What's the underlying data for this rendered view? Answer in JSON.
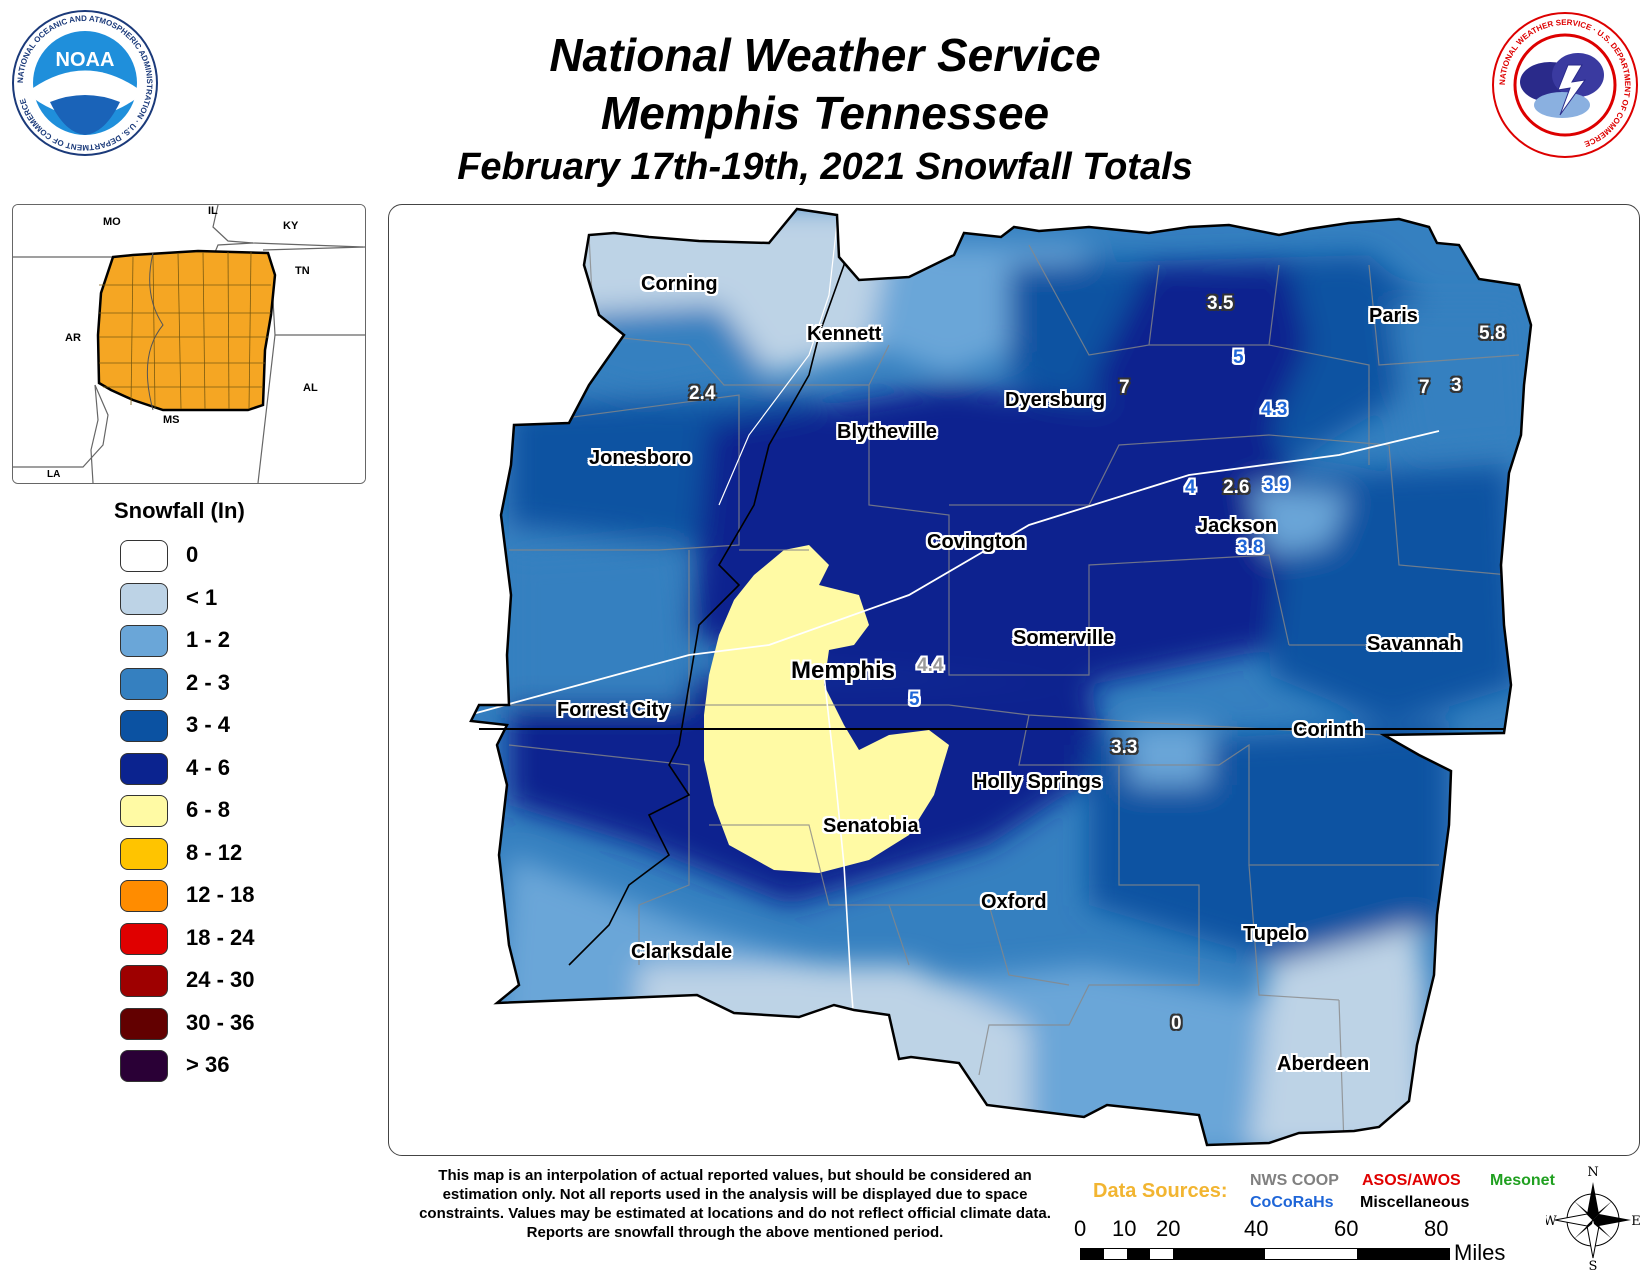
{
  "title": {
    "line1": "National Weather Service",
    "line2": "Memphis Tennessee",
    "line3": "February 17th-19th, 2021 Snowfall Totals"
  },
  "logos": {
    "noaa": {
      "text": "NOAA",
      "ring": "NATIONAL OCEANIC AND ATMOSPHERIC ADMINISTRATION · U.S. DEPARTMENT OF COMMERCE"
    },
    "nws": {
      "ring": "NATIONAL WEATHER SERVICE · U.S. DEPARTMENT OF COMMERCE"
    }
  },
  "inset": {
    "states": [
      "MO",
      "IL",
      "KY",
      "TN",
      "AR",
      "AL",
      "MS",
      "LA"
    ],
    "highlight_color": "#f5a623"
  },
  "legend": {
    "title": "Snowfall (In)",
    "items": [
      {
        "label": "0",
        "color": "#ffffff"
      },
      {
        "label": "< 1",
        "color": "#bdd3e6"
      },
      {
        "label": "1 - 2",
        "color": "#6aa6d8"
      },
      {
        "label": "2 - 3",
        "color": "#3580c0"
      },
      {
        "label": "3 - 4",
        "color": "#0b52a2"
      },
      {
        "label": "4 - 6",
        "color": "#0b238f"
      },
      {
        "label": "6 - 8",
        "color": "#fffaa4"
      },
      {
        "label": "8 - 12",
        "color": "#ffc400"
      },
      {
        "label": "12 - 18",
        "color": "#ff8c00"
      },
      {
        "label": "18 - 24",
        "color": "#e00000"
      },
      {
        "label": "24 - 30",
        "color": "#9e0000"
      },
      {
        "label": "30 - 36",
        "color": "#620000"
      },
      {
        "label": "> 36",
        "color": "#2a0036"
      }
    ]
  },
  "cities": [
    {
      "name": "Corning"
    },
    {
      "name": "Kennett"
    },
    {
      "name": "Dyersburg"
    },
    {
      "name": "Paris"
    },
    {
      "name": "Blytheville"
    },
    {
      "name": "Jonesboro"
    },
    {
      "name": "Covington"
    },
    {
      "name": "Jackson"
    },
    {
      "name": "Memphis"
    },
    {
      "name": "Somerville"
    },
    {
      "name": "Savannah"
    },
    {
      "name": "Forrest City"
    },
    {
      "name": "Corinth"
    },
    {
      "name": "Holly Springs"
    },
    {
      "name": "Senatobia"
    },
    {
      "name": "Oxford"
    },
    {
      "name": "Clarksdale"
    },
    {
      "name": "Tupelo"
    },
    {
      "name": "Aberdeen"
    }
  ],
  "reports": [
    {
      "value": "3.5",
      "color": "#ffffff"
    },
    {
      "value": "5.8",
      "color": "#ffffff"
    },
    {
      "value": "5",
      "color": "#1f66d8"
    },
    {
      "value": "7",
      "color": "#ffffff"
    },
    {
      "value": "7",
      "color": "#ffffff"
    },
    {
      "value": "3",
      "color": "#ffffff"
    },
    {
      "value": "2.4",
      "color": "#ffffff"
    },
    {
      "value": "4.3",
      "color": "#1f66d8"
    },
    {
      "value": "4",
      "color": "#1f66d8"
    },
    {
      "value": "2.6",
      "color": "#ffffff"
    },
    {
      "value": "3.9",
      "color": "#1f66d8"
    },
    {
      "value": "3.8",
      "color": "#1f66d8"
    },
    {
      "value": "4.4",
      "color": "#9a9a9a"
    },
    {
      "value": "5",
      "color": "#1f66d8"
    },
    {
      "value": "3.3",
      "color": "#ffffff"
    },
    {
      "value": "0",
      "color": "#ffffff"
    }
  ],
  "disclaimer": "This map is an interpolation of actual reported values, but should be considered an estimation only. Not all reports used in the analysis will be displayed due to space constraints. Values may be estimated at locations and do not reflect official climate data. Reports are snowfall through the above mentioned period.",
  "data_sources": {
    "label": "Data Sources:",
    "items": [
      {
        "name": "NWS COOP",
        "color": "#808080"
      },
      {
        "name": "ASOS/AWOS",
        "color": "#e00000"
      },
      {
        "name": "Mesonet",
        "color": "#20a020"
      },
      {
        "name": "CoCoRaHs",
        "color": "#1f66d8"
      },
      {
        "name": "Miscellaneous",
        "color": "#000000"
      }
    ]
  },
  "scale": {
    "ticks": [
      "0",
      "10",
      "20",
      "40",
      "60",
      "80"
    ],
    "unit": "Miles"
  },
  "compass": {
    "n": "N",
    "s": "S",
    "e": "E",
    "w": "W"
  }
}
